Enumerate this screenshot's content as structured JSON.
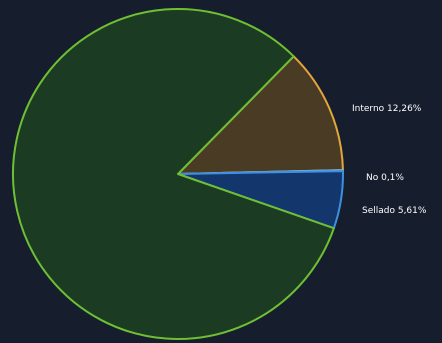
{
  "chart_data": {
    "type": "pie",
    "slices": [
      {
        "label": "Interno 12,26%",
        "value": 12.26,
        "fill": "#4a3b24",
        "stroke": "#e3a63c"
      },
      {
        "label": "No 0,1%",
        "value": 0.1,
        "fill": "#2a3b53",
        "stroke": "#6fb0e8"
      },
      {
        "label": "Sellado 5,61%",
        "value": 5.61,
        "fill": "#13376c",
        "stroke": "#3f8fe0"
      },
      {
        "label": "",
        "value": 82.03,
        "fill": "#1c3b23",
        "stroke": "#6fbf34"
      }
    ],
    "start_angle_deg": -45.5,
    "direction": "clockwise",
    "colors": {
      "background": "#161e2d"
    }
  }
}
